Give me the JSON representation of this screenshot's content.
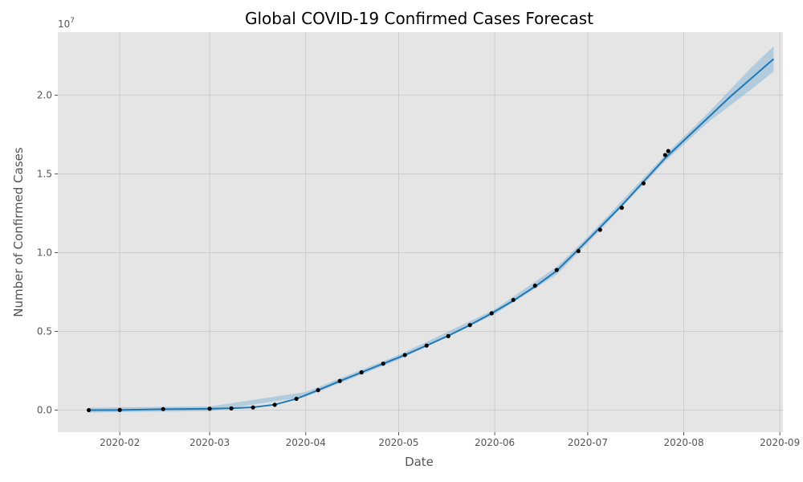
{
  "chart_data": {
    "type": "line",
    "title": "Global COVID-19 Confirmed Cases Forecast",
    "xlabel": "Date",
    "ylabel": "Number of Confirmed Cases",
    "y_offset_label": "1e7",
    "grid": true,
    "legend": null,
    "colors": {
      "background": "#e5e5e5",
      "grid": "#cccccc",
      "forecast_line": "#1f77b4",
      "interval_band": "#7fb3d8",
      "actual_points": "#000000"
    },
    "xlim": [
      "2020-01-12",
      "2020-09-02"
    ],
    "ylim": [
      -1400000,
      24000000
    ],
    "x_ticks": [
      {
        "date": "2020-02-01",
        "label": "2020-02"
      },
      {
        "date": "2020-03-01",
        "label": "2020-03"
      },
      {
        "date": "2020-04-01",
        "label": "2020-04"
      },
      {
        "date": "2020-05-01",
        "label": "2020-05"
      },
      {
        "date": "2020-06-01",
        "label": "2020-06"
      },
      {
        "date": "2020-07-01",
        "label": "2020-07"
      },
      {
        "date": "2020-08-01",
        "label": "2020-08"
      },
      {
        "date": "2020-09-01",
        "label": "2020-09"
      }
    ],
    "y_ticks": [
      {
        "value": 0,
        "label": "0.0"
      },
      {
        "value": 5000000,
        "label": "0.5"
      },
      {
        "value": 10000000,
        "label": "1.0"
      },
      {
        "value": 15000000,
        "label": "1.5"
      },
      {
        "value": 20000000,
        "label": "2.0"
      }
    ],
    "series": [
      {
        "kind": "actual",
        "marker": "dot",
        "points": [
          [
            "2020-01-22",
            555
          ],
          [
            "2020-02-01",
            12000
          ],
          [
            "2020-02-15",
            69000
          ],
          [
            "2020-03-01",
            88000
          ],
          [
            "2020-03-08",
            110000
          ],
          [
            "2020-03-15",
            170000
          ],
          [
            "2020-03-22",
            340000
          ],
          [
            "2020-03-29",
            720000
          ],
          [
            "2020-04-05",
            1270000
          ],
          [
            "2020-04-12",
            1850000
          ],
          [
            "2020-04-19",
            2400000
          ],
          [
            "2020-04-26",
            2950000
          ],
          [
            "2020-05-03",
            3500000
          ],
          [
            "2020-05-10",
            4100000
          ],
          [
            "2020-05-17",
            4700000
          ],
          [
            "2020-05-24",
            5400000
          ],
          [
            "2020-05-31",
            6150000
          ],
          [
            "2020-06-07",
            7000000
          ],
          [
            "2020-06-14",
            7900000
          ],
          [
            "2020-06-21",
            8900000
          ],
          [
            "2020-06-28",
            10100000
          ],
          [
            "2020-07-05",
            11450000
          ],
          [
            "2020-07-12",
            12850000
          ],
          [
            "2020-07-19",
            14400000
          ],
          [
            "2020-07-26",
            16200000
          ],
          [
            "2020-07-27",
            16450000
          ]
        ]
      },
      {
        "kind": "forecast",
        "points": [
          [
            "2020-01-22",
            0
          ],
          [
            "2020-02-01",
            10000
          ],
          [
            "2020-02-15",
            60000
          ],
          [
            "2020-03-01",
            90000
          ],
          [
            "2020-03-08",
            120000
          ],
          [
            "2020-03-15",
            180000
          ],
          [
            "2020-03-22",
            350000
          ],
          [
            "2020-03-29",
            720000
          ],
          [
            "2020-04-05",
            1270000
          ],
          [
            "2020-04-12",
            1840000
          ],
          [
            "2020-04-19",
            2400000
          ],
          [
            "2020-04-26",
            2950000
          ],
          [
            "2020-05-03",
            3500000
          ],
          [
            "2020-05-10",
            4100000
          ],
          [
            "2020-05-17",
            4720000
          ],
          [
            "2020-05-24",
            5400000
          ],
          [
            "2020-05-31",
            6150000
          ],
          [
            "2020-06-07",
            6950000
          ],
          [
            "2020-06-14",
            7850000
          ],
          [
            "2020-06-21",
            8850000
          ],
          [
            "2020-06-28",
            10200000
          ],
          [
            "2020-07-05",
            11600000
          ],
          [
            "2020-07-12",
            13000000
          ],
          [
            "2020-07-19",
            14500000
          ],
          [
            "2020-07-26",
            16000000
          ],
          [
            "2020-08-02",
            17300000
          ],
          [
            "2020-08-09",
            18600000
          ],
          [
            "2020-08-16",
            19900000
          ],
          [
            "2020-08-23",
            21100000
          ],
          [
            "2020-08-30",
            22300000
          ]
        ]
      },
      {
        "kind": "interval",
        "lower": [
          [
            "2020-01-22",
            -150000
          ],
          [
            "2020-03-01",
            -60000
          ],
          [
            "2020-04-01",
            850000
          ],
          [
            "2020-05-01",
            3200000
          ],
          [
            "2020-06-01",
            6100000
          ],
          [
            "2020-06-21",
            8600000
          ],
          [
            "2020-07-01",
            10600000
          ],
          [
            "2020-07-15",
            13500000
          ],
          [
            "2020-07-26",
            15800000
          ],
          [
            "2020-08-09",
            18300000
          ],
          [
            "2020-08-23",
            20400000
          ],
          [
            "2020-08-30",
            21500000
          ]
        ],
        "upper": [
          [
            "2020-01-22",
            150000
          ],
          [
            "2020-03-01",
            240000
          ],
          [
            "2020-04-01",
            1150000
          ],
          [
            "2020-05-01",
            3500000
          ],
          [
            "2020-06-01",
            6400000
          ],
          [
            "2020-06-21",
            9100000
          ],
          [
            "2020-07-01",
            11000000
          ],
          [
            "2020-07-15",
            13900000
          ],
          [
            "2020-07-26",
            16200000
          ],
          [
            "2020-08-09",
            18900000
          ],
          [
            "2020-08-23",
            21800000
          ],
          [
            "2020-08-30",
            23100000
          ]
        ]
      }
    ]
  }
}
